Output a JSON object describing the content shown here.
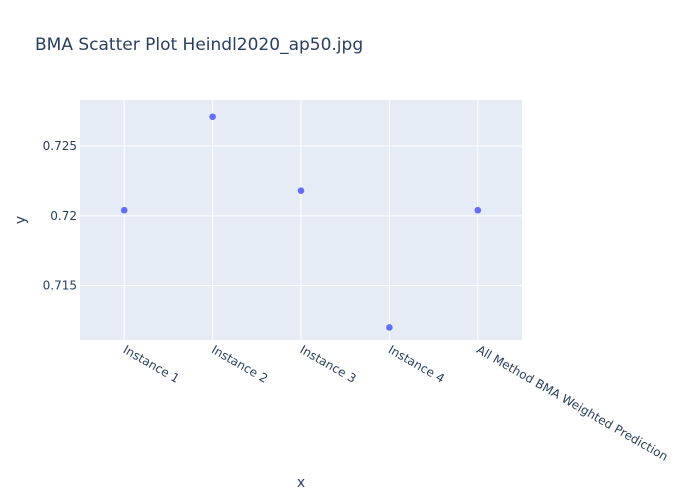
{
  "chart_data": {
    "type": "scatter",
    "title": "BMA Scatter Plot Heindl2020_ap50.jpg",
    "xlabel": "x",
    "ylabel": "y",
    "categories": [
      "Instance 1",
      "Instance 2",
      "Instance 3",
      "Instance 4",
      "All Method BMA Weighted Prediction"
    ],
    "values": [
      0.7204,
      0.7271,
      0.7218,
      0.712,
      0.7204
    ],
    "ylim": [
      0.7111,
      0.7283
    ],
    "yticks": [
      0.715,
      0.72,
      0.725
    ],
    "ytick_labels": [
      "0.715",
      "0.72",
      "0.725"
    ],
    "grid": true,
    "colors": {
      "marker": "#636efa",
      "plot_bg": "#e5ecf6",
      "grid": "#ffffff",
      "text": "#2a3f5f"
    }
  }
}
